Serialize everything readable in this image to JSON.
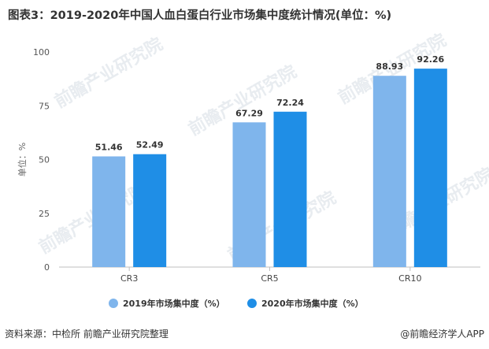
{
  "title": "图表3：2019-2020年中国人血白蛋白行业市场集中度统计情况(单位：%)",
  "source": "资料来源：中检所 前瞻产业研究院整理",
  "credit": "@前瞻经济学人APP",
  "watermark": "前瞻产业研究院",
  "chart_data": {
    "type": "bar",
    "categories": [
      "CR3",
      "CR5",
      "CR10"
    ],
    "series": [
      {
        "name": "2019年市场集中度（%）",
        "values": [
          51.46,
          67.29,
          88.93
        ],
        "color": "#7fb5ec"
      },
      {
        "name": "2020年市场集中度（%）",
        "values": [
          52.49,
          72.24,
          92.26
        ],
        "color": "#1f8ee6"
      }
    ],
    "value_labels": [
      [
        "51.46",
        "67.29",
        "88.93"
      ],
      [
        "52.49",
        "72.24",
        "92.26"
      ]
    ],
    "ylabel": "单位：%",
    "ylim": [
      0,
      100
    ],
    "yticks": [
      "0",
      "25",
      "50",
      "75",
      "100"
    ],
    "legend": "bottom",
    "grid": false
  }
}
